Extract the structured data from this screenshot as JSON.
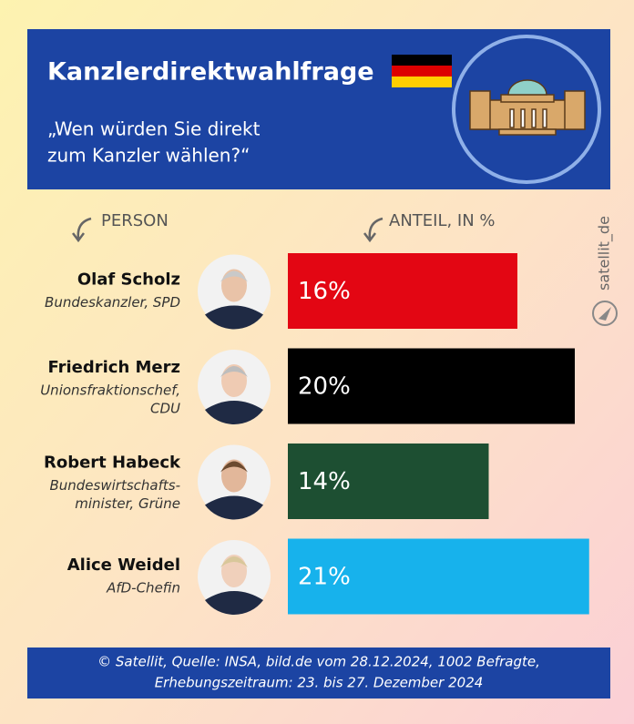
{
  "chart_data": {
    "type": "bar",
    "orientation": "horizontal",
    "title": "Kanzlerdirektwahlfrage",
    "subtitle": [
      "„Wen würden Sie direkt",
      "zum Kanzler wählen?“"
    ],
    "category_header": "PERSON",
    "value_header": "ANTEIL, IN %",
    "categories": [
      "Olaf Scholz",
      "Friedrich Merz",
      "Robert Habeck",
      "Alice Weidel"
    ],
    "descriptions": [
      [
        "Bundeskanzler, SPD"
      ],
      [
        "Unionsfraktionschef,",
        "CDU"
      ],
      [
        "Bundeswirtschafts-",
        "minister, Grüne"
      ],
      [
        "AfD-Chefin"
      ]
    ],
    "values": [
      16,
      20,
      14,
      21
    ],
    "value_labels": [
      "16%",
      "20%",
      "14%",
      "21%"
    ],
    "colors": [
      "#e30613",
      "#000000",
      "#1d4f32",
      "#17b2ec"
    ],
    "source": [
      "© Satellit, Quelle: INSA, bild.de vom 28.12.2024, 1002 Befragte,",
      "Erhebungszeitraum: 23. bis 27. Dezember 2024"
    ],
    "watermark": "satellit_de"
  }
}
